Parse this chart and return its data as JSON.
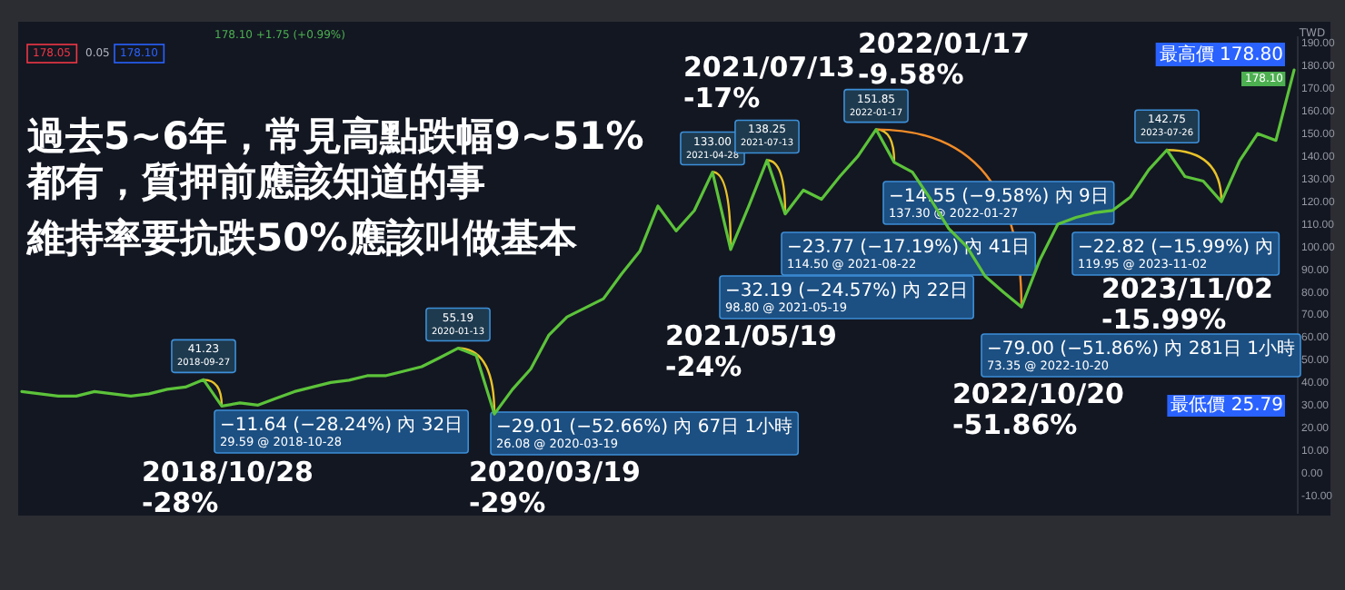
{
  "chart_data": {
    "type": "line",
    "title": "過去5~6年，常見高點跌幅9~51%都有，質押前應該知道的事",
    "subtitle": "維持率要抗跌50%應該叫做基本",
    "ylabel": "TWD",
    "categories": [
      null,
      null,
      null,
      null,
      null,
      null,
      null,
      null,
      null,
      null,
      null,
      null,
      null,
      null,
      null,
      null,
      null,
      null,
      null,
      null,
      null,
      null,
      null,
      null,
      null,
      null,
      null,
      null,
      null,
      null,
      null,
      null,
      null,
      null,
      null,
      null,
      null,
      null,
      null,
      null,
      null,
      null,
      null,
      null,
      null,
      null,
      null,
      null,
      null,
      null,
      null,
      null,
      null,
      null,
      null,
      null,
      null,
      null,
      null,
      null,
      null,
      null,
      null,
      null,
      null,
      null,
      null,
      null,
      null,
      null,
      null
    ],
    "series": [
      {
        "color": "#5cc33a",
        "values": [
          36,
          35,
          34,
          34,
          36,
          35,
          34,
          35,
          37,
          38,
          41.23,
          29.59,
          31,
          30,
          33,
          36,
          38,
          40,
          41,
          43,
          43,
          45,
          47,
          51,
          55.19,
          52,
          26.08,
          37,
          46,
          61,
          69,
          73,
          77,
          88,
          98,
          118,
          107,
          116,
          133,
          98.8,
          118,
          138.25,
          114.5,
          125,
          121,
          131,
          140,
          151.85,
          137.3,
          133,
          121,
          108,
          100,
          87,
          80,
          73.35,
          94,
          110,
          113,
          115,
          116,
          122,
          134,
          142.75,
          131,
          129,
          119.95,
          138,
          150,
          147,
          178.1
        ]
      }
    ],
    "ylim": [
      -18,
      193
    ],
    "yticks": [
      {
        "value": -10,
        "label": "-10.00"
      },
      {
        "value": 0,
        "label": "0.00"
      },
      {
        "value": 10,
        "label": "10.00"
      },
      {
        "value": 20,
        "label": "20.00"
      },
      {
        "value": 30,
        "label": "30.00"
      },
      {
        "value": 40,
        "label": "40.00"
      },
      {
        "value": 50,
        "label": "50.00"
      },
      {
        "value": 60,
        "label": "60.00"
      },
      {
        "value": 70,
        "label": "70.00"
      },
      {
        "value": 80,
        "label": "80.00"
      },
      {
        "value": 90,
        "label": "90.00"
      },
      {
        "value": 100,
        "label": "100.00"
      },
      {
        "value": 110,
        "label": "110.00"
      },
      {
        "value": 120,
        "label": "120.00"
      },
      {
        "value": 130,
        "label": "130.00"
      },
      {
        "value": 140,
        "label": "140.00"
      },
      {
        "value": 150,
        "label": "150.00"
      },
      {
        "value": 160,
        "label": "160.00"
      },
      {
        "value": 170,
        "label": "170.00"
      },
      {
        "value": 180,
        "label": "180.00"
      },
      {
        "value": 190,
        "label": "190.00"
      }
    ],
    "tick_labels": "y",
    "grid": false,
    "annotations": [
      "2018/10/28\n-28%",
      "2020/03/19\n-29%",
      "2021/05/19\n-24%",
      "2021/07/13\n-17%",
      "2022/01/17\n-9.58%",
      "2022/10/20\n-51.86%",
      "2023/11/02\n-15.99%",
      "41.23\n2018-09-27",
      "55.19\n2020-01-13",
      "133.00\n2021-04-28",
      "138.25\n2021-07-13",
      "151.85\n2022-01-17",
      "142.75\n2023-07-26",
      "−11.64 (−28.24%) 內 32日\n29.59 @ 2018-10-28",
      "−29.01 (−52.66%) 內 67日 1小時\n26.08 @ 2020-03-19",
      "−32.19 (−24.57%) 內 22日\n98.80 @ 2021-05-19",
      "−23.77 (−17.19%) 內 41日\n114.50 @ 2021-08-22",
      "−14.55 (−9.58%) 內 9日\n137.30 @ 2022-01-27",
      "−79.00 (−51.86%) 內 281日 1小時\n73.35 @ 2022-10-20",
      "−22.82 (−15.99%) 內\n119.95 @ 2023-11-02",
      "最高價 178.80",
      "178.10",
      "最低價 25.79",
      "178.10 +1.75 (+0.99%)",
      "178.05",
      "0.05",
      "178.10"
    ]
  }
}
